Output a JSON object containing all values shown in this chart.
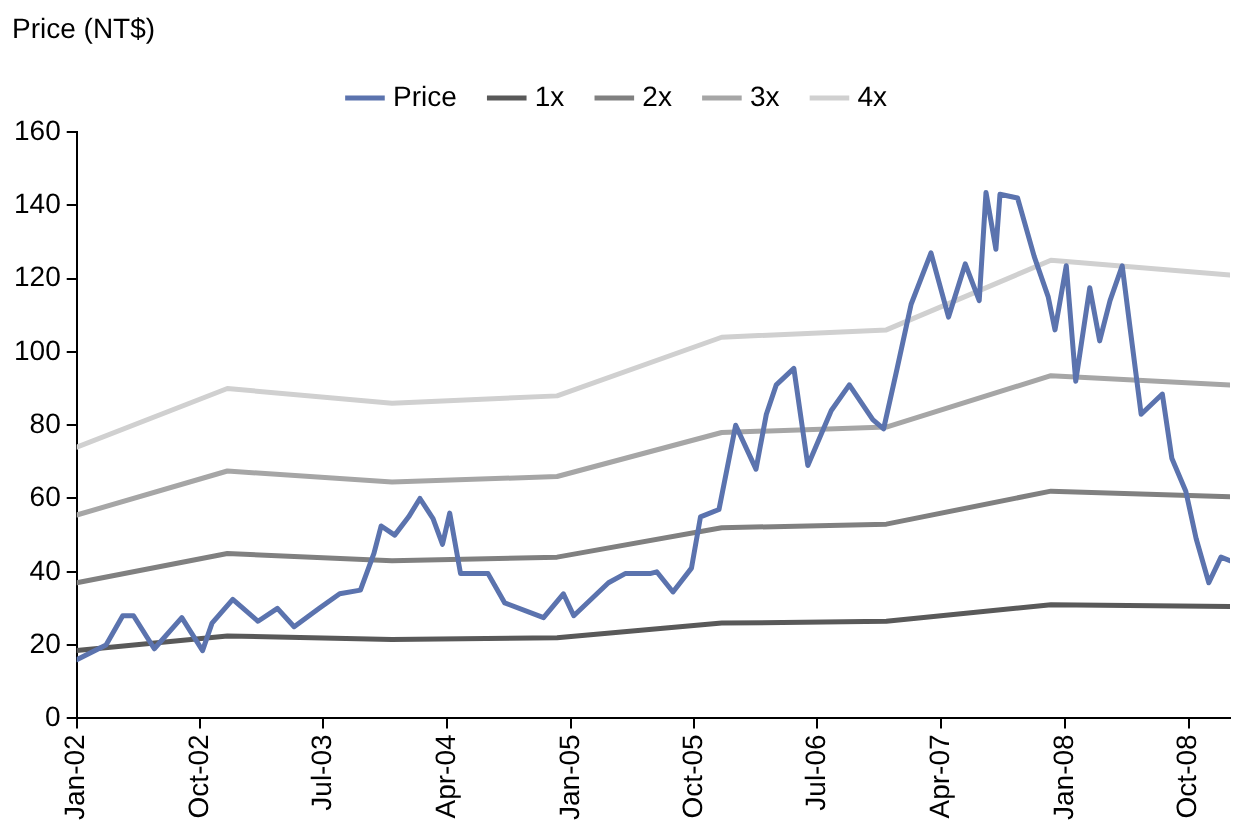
{
  "chart_data": {
    "type": "line",
    "ylabel": "Price (NT$)",
    "legend": "top",
    "grid": false,
    "line_style": "solid",
    "xlim": [
      "2002-01-01",
      "2009-01-01"
    ],
    "xticks": [
      {
        "value": "2002-01-01",
        "label": "Jan-02"
      },
      {
        "value": "2002-10-01",
        "label": "Oct-02"
      },
      {
        "value": "2003-07-01",
        "label": "Jul-03"
      },
      {
        "value": "2004-04-01",
        "label": "Apr-04"
      },
      {
        "value": "2005-01-01",
        "label": "Jan-05"
      },
      {
        "value": "2005-10-01",
        "label": "Oct-05"
      },
      {
        "value": "2006-07-01",
        "label": "Jul-06"
      },
      {
        "value": "2007-04-01",
        "label": "Apr-07"
      },
      {
        "value": "2008-01-01",
        "label": "Jan-08"
      },
      {
        "value": "2008-10-01",
        "label": "Oct-08"
      }
    ],
    "ylim": [
      0,
      160
    ],
    "yticks": [
      0,
      20,
      40,
      60,
      80,
      100,
      120,
      140,
      160
    ],
    "series": [
      {
        "name": "Price",
        "color": "#5b73ae",
        "x": [
          "2002-01-01",
          "2002-03-07",
          "2002-04-13",
          "2002-05-07",
          "2002-06-22",
          "2002-08-22",
          "2002-10-07",
          "2002-10-28",
          "2002-12-13",
          "2003-02-07",
          "2003-03-22",
          "2003-04-28",
          "2003-06-22",
          "2003-08-07",
          "2003-09-22",
          "2003-10-22",
          "2003-11-07",
          "2003-12-07",
          "2004-01-07",
          "2004-02-01",
          "2004-03-01",
          "2004-03-22",
          "2004-04-07",
          "2004-05-01",
          "2004-07-01",
          "2004-08-07",
          "2004-11-01",
          "2004-12-15",
          "2005-01-07",
          "2005-03-25",
          "2005-05-01",
          "2005-06-25",
          "2005-07-10",
          "2005-08-15",
          "2005-09-25",
          "2005-10-15",
          "2005-11-25",
          "2006-01-01",
          "2006-02-15",
          "2006-03-10",
          "2006-04-01",
          "2006-05-10",
          "2006-06-10",
          "2006-08-01",
          "2006-09-10",
          "2006-11-01",
          "2006-11-25",
          "2006-12-25",
          "2007-01-25",
          "2007-03-10",
          "2007-04-18",
          "2007-05-25",
          "2007-06-25",
          "2007-07-10",
          "2007-08-01",
          "2007-08-10",
          "2007-09-18",
          "2007-10-25",
          "2007-11-25",
          "2007-12-10",
          "2008-01-04",
          "2008-01-25",
          "2008-02-25",
          "2008-03-18",
          "2008-04-10",
          "2008-05-07",
          "2008-05-25",
          "2008-06-18",
          "2008-08-04",
          "2008-08-25",
          "2008-09-25",
          "2008-10-18",
          "2008-11-15",
          "2008-12-12",
          "2009-01-01"
        ],
        "values": [
          16,
          20,
          28,
          28,
          19,
          27.5,
          18.5,
          26,
          32.5,
          26.5,
          30,
          25,
          30,
          34,
          35,
          45,
          52.5,
          50,
          55,
          60,
          54.5,
          47.5,
          56,
          39.5,
          39.5,
          31.5,
          27.5,
          34,
          28,
          37,
          39.5,
          39.5,
          40,
          34.5,
          41,
          55,
          57,
          80,
          68,
          83,
          91,
          95.5,
          69,
          84,
          91,
          81.5,
          79,
          95.5,
          113,
          127,
          109.5,
          124,
          114,
          143.5,
          128,
          143,
          142,
          126,
          115,
          106,
          123.5,
          92,
          117.5,
          103,
          114,
          123.5,
          106,
          83,
          88.5,
          71,
          62,
          49,
          37,
          44,
          43
        ]
      },
      {
        "name": "1x",
        "color": "#595959",
        "x": [
          "2002-01-01",
          "2002-12-01",
          "2003-12-01",
          "2004-12-01",
          "2005-12-01",
          "2006-12-01",
          "2007-12-01",
          "2009-01-01"
        ],
        "values": [
          18.5,
          22.5,
          21.5,
          22,
          26,
          26.5,
          31,
          30.5
        ]
      },
      {
        "name": "2x",
        "color": "#808080",
        "x": [
          "2002-01-01",
          "2002-12-01",
          "2003-12-01",
          "2004-12-01",
          "2005-12-01",
          "2006-12-01",
          "2007-12-01",
          "2009-01-01"
        ],
        "values": [
          37,
          45,
          43,
          44,
          52,
          53,
          62,
          60.5
        ]
      },
      {
        "name": "3x",
        "color": "#a6a6a6",
        "x": [
          "2002-01-01",
          "2002-12-01",
          "2003-12-01",
          "2004-12-01",
          "2005-12-01",
          "2006-12-01",
          "2007-12-01",
          "2009-01-01"
        ],
        "values": [
          55.5,
          67.5,
          64.5,
          66,
          78,
          79.5,
          93.5,
          91
        ]
      },
      {
        "name": "4x",
        "color": "#d0d0d0",
        "x": [
          "2002-01-01",
          "2002-12-01",
          "2003-12-01",
          "2004-12-01",
          "2005-12-01",
          "2006-12-01",
          "2007-12-01",
          "2009-01-01"
        ],
        "values": [
          74,
          90,
          86,
          88,
          104,
          106,
          125,
          121
        ]
      }
    ]
  }
}
